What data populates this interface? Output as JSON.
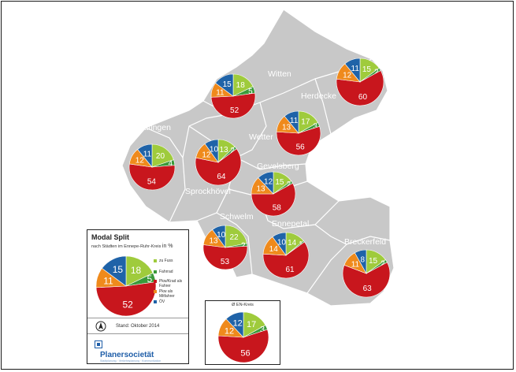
{
  "colors": {
    "zu_fuss": "#9fcb3c",
    "fahrrad": "#3a9a3a",
    "pkw_fahrer": "#c8161d",
    "pkw_mitfahrer": "#ef8a1c",
    "oev": "#1f63a8",
    "region": "#c8c8c8"
  },
  "legend": {
    "title": "Modal Split",
    "subtitle": "nach Städten im Ennepe-Ruhr-Kreis",
    "subtitle_unit": "in %",
    "items": [
      {
        "label": "zu Fuss",
        "color_key": "zu_fuss"
      },
      {
        "label": "Fahrrad",
        "color_key": "fahrrad"
      },
      {
        "label": "Pkw/Krad als Fahrer",
        "color_key": "pkw_fahrer"
      },
      {
        "label": "Pkw als Mitfahrer",
        "color_key": "pkw_mitfahrer"
      },
      {
        "label": "ÖV",
        "color_key": "oev"
      }
    ],
    "example_values": {
      "zu_fuss": 18,
      "fahrrad": 5,
      "pkw_fahrer": 52,
      "pkw_mitfahrer": 11,
      "oev": 15
    },
    "stand": "Stand: Oktober 2014",
    "brand": "Planersocietät",
    "brand_sub": "Stadtplanung · Verkehrsplanung · Kommunikation",
    "north_icon": "north-arrow-icon",
    "logo_icon": "planersocietaet-logo-icon"
  },
  "en_kreis": {
    "title": "Ø EN-Kreis",
    "values": {
      "zu_fuss": 17,
      "fahrrad": 3,
      "pkw_fahrer": 56,
      "pkw_mitfahrer": 12,
      "oev": 12
    }
  },
  "cities": [
    {
      "name": "Witten",
      "values": {
        "zu_fuss": 18,
        "fahrrad": 5,
        "pkw_fahrer": 52,
        "pkw_mitfahrer": 11,
        "oev": 15
      }
    },
    {
      "name": "Herdecke",
      "values": {
        "zu_fuss": 15,
        "fahrrad": 2,
        "pkw_fahrer": 60,
        "pkw_mitfahrer": 12,
        "oev": 11
      }
    },
    {
      "name": "Hattingen",
      "values": {
        "zu_fuss": 20,
        "fahrrad": 4,
        "pkw_fahrer": 54,
        "pkw_mitfahrer": 12,
        "oev": 11
      }
    },
    {
      "name": "Wetter",
      "values": {
        "zu_fuss": 17,
        "fahrrad": 3,
        "pkw_fahrer": 56,
        "pkw_mitfahrer": 13,
        "oev": 11
      }
    },
    {
      "name": "Sprockhövel",
      "values": {
        "zu_fuss": 13,
        "fahrrad": 2,
        "pkw_fahrer": 64,
        "pkw_mitfahrer": 12,
        "oev": 10
      }
    },
    {
      "name": "Gevelsberg",
      "values": {
        "zu_fuss": 15,
        "fahrrad": 2,
        "pkw_fahrer": 58,
        "pkw_mitfahrer": 13,
        "oev": 12
      }
    },
    {
      "name": "Schwelm",
      "values": {
        "zu_fuss": 22,
        "fahrrad": 2,
        "pkw_fahrer": 53,
        "pkw_mitfahrer": 13,
        "oev": 10
      }
    },
    {
      "name": "Ennepetal",
      "values": {
        "zu_fuss": 14,
        "fahrrad": 1,
        "pkw_fahrer": 61,
        "pkw_mitfahrer": 14,
        "oev": 10
      }
    },
    {
      "name": "Breckerfeld",
      "values": {
        "zu_fuss": 15,
        "fahrrad": 2,
        "pkw_fahrer": 63,
        "pkw_mitfahrer": 11,
        "oev": 8
      }
    }
  ]
}
